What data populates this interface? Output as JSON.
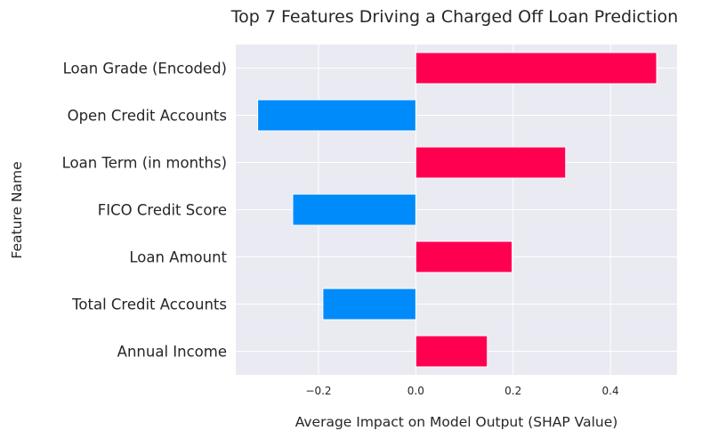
{
  "chart_data": {
    "type": "bar",
    "orientation": "horizontal",
    "title": "Top 7 Features Driving a Charged Off Loan Prediction",
    "xlabel": "Average Impact on Model Output (SHAP Value)",
    "ylabel": "Feature Name",
    "categories": [
      "Loan Grade (Encoded)",
      "Open Credit Accounts",
      "Loan Term (in months)",
      "FICO Credit Score",
      "Loan Amount",
      "Total Credit Accounts",
      "Annual Income"
    ],
    "values": [
      0.495,
      -0.325,
      0.308,
      -0.253,
      0.198,
      -0.191,
      0.147
    ],
    "xlim": [
      -0.37,
      0.537
    ],
    "xticks": [
      -0.2,
      0.0,
      0.2,
      0.4
    ],
    "xtick_labels": [
      "−0.2",
      "0.0",
      "0.2",
      "0.4"
    ],
    "grid": true,
    "colors": {
      "positive": "#ff0051",
      "negative": "#008bfb",
      "plot_background": "#eaeaf2",
      "grid": "#ffffff",
      "text": "#262626"
    }
  }
}
